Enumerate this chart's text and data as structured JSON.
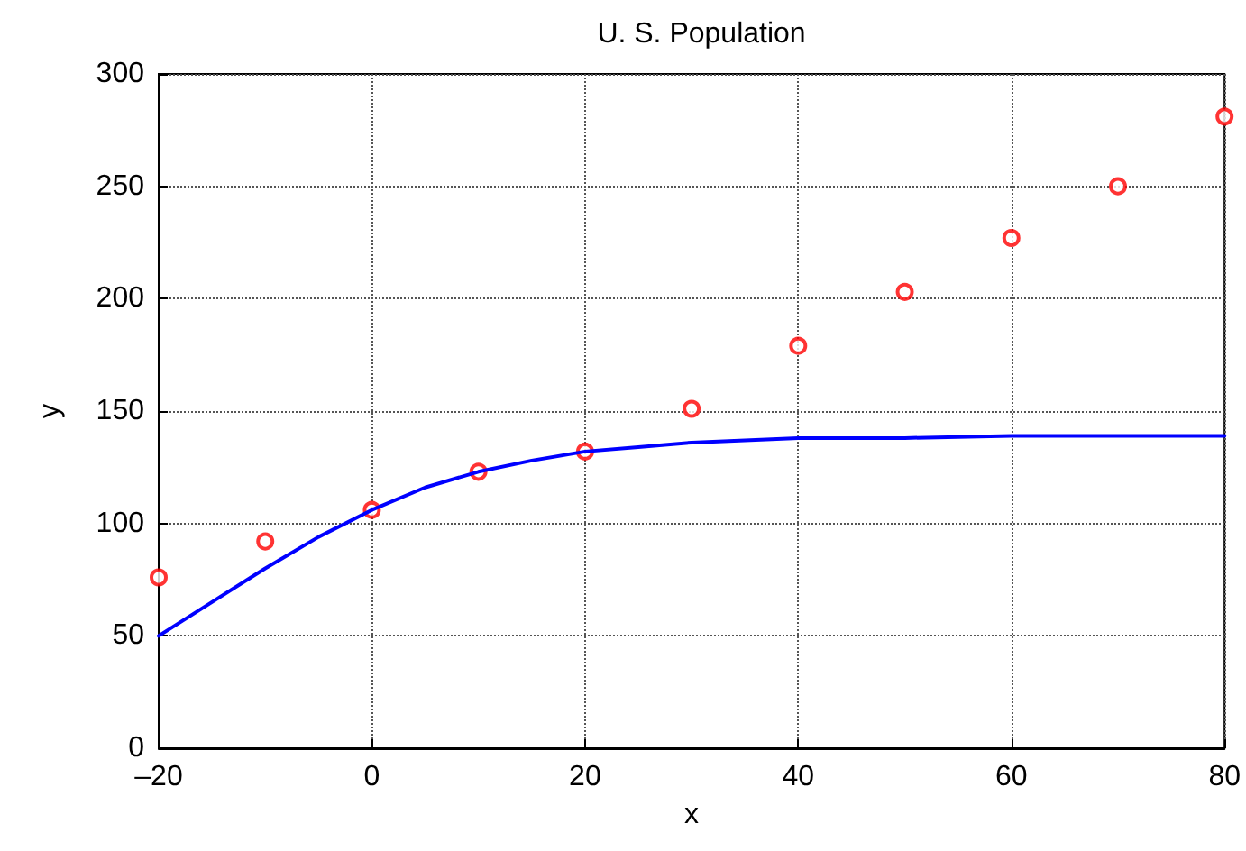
{
  "chart_data": {
    "type": "scatter",
    "title": "U. S. Population",
    "xlabel": "x",
    "ylabel": "y",
    "xlim": [
      -20,
      80
    ],
    "xticks": [
      {
        "value": -20,
        "label": "–20"
      },
      0,
      20,
      40,
      60,
      80
    ],
    "ylim": [
      0,
      300
    ],
    "yticks": [
      0,
      50,
      100,
      150,
      200,
      250,
      300
    ],
    "grid": true,
    "series": [
      {
        "color": "#ff0000",
        "marker": "circle",
        "x": [
          -20,
          -10,
          0,
          10,
          20,
          30,
          40,
          50,
          60,
          70,
          80
        ],
        "values": [
          76,
          92,
          106,
          123,
          132,
          151,
          179,
          203,
          227,
          250,
          281
        ]
      },
      {
        "type": "line",
        "color": "#0000ff",
        "marker": "none",
        "x": [
          -20,
          -15,
          -10,
          -5,
          0,
          5,
          10,
          15,
          20,
          25,
          30,
          40,
          50,
          60,
          70,
          80
        ],
        "values": [
          50,
          65,
          80,
          94,
          106,
          116,
          123,
          128,
          132,
          134,
          136,
          138,
          138,
          139,
          139,
          139
        ]
      }
    ]
  }
}
